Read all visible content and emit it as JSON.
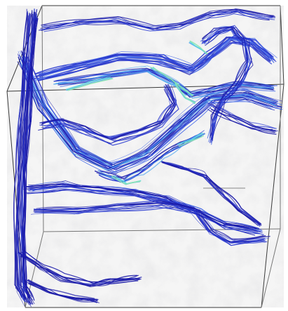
{
  "scene": {
    "kind": "3d-volume-streamline-render",
    "background_color": "#ffffff",
    "volume_color": "#d9d9d9",
    "box_edge_color": "#333333",
    "streamline_colors": [
      "#1a1aa8",
      "#2a3ad0",
      "#3e63e6",
      "#4fa6ee",
      "#59d6dc",
      "#8fe6b0"
    ]
  }
}
